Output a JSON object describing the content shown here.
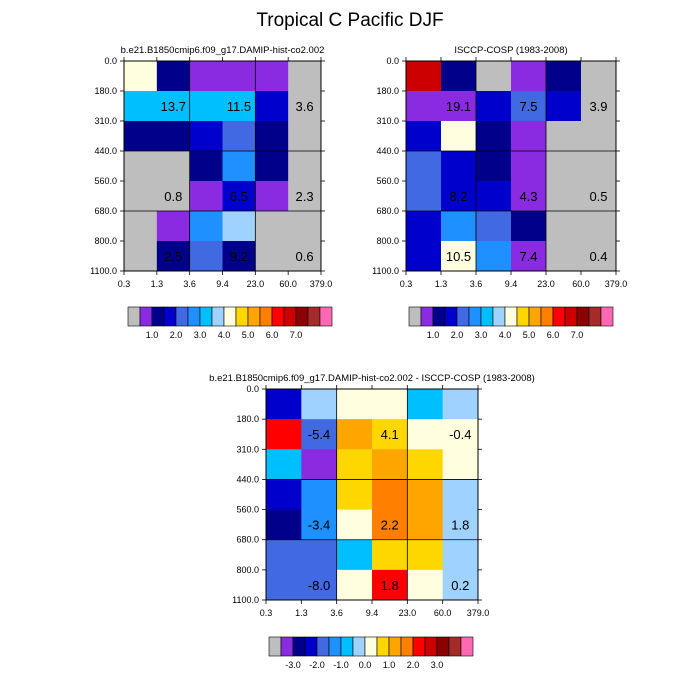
{
  "title": "Tropical C Pacific DJF",
  "palettes": {
    "abs": [
      "#bebebe",
      "#8a2be2",
      "#00008b",
      "#0000cd",
      "#4169e1",
      "#1e90ff",
      "#00bfff",
      "#a0d2ff",
      "#ffffe0",
      "#ffd700",
      "#ffa500",
      "#ff7f00",
      "#ff0000",
      "#cd0000",
      "#8b0000",
      "#a52a2a",
      "#ff69b4"
    ],
    "diff": [
      "#bebebe",
      "#8a2be2",
      "#00008b",
      "#0000cd",
      "#4169e1",
      "#1e90ff",
      "#00bfff",
      "#a0d2ff",
      "#ffffe0",
      "#ffd700",
      "#ffa500",
      "#ff7f00",
      "#ff0000",
      "#cd0000",
      "#8b0000",
      "#a52a2a",
      "#ff69b4"
    ]
  },
  "chart_data": [
    {
      "type": "heatmap",
      "title": "b.e21.B1850cmip6.f09_g17.DAMIP-hist-co2.002",
      "x_tick_labels": [
        "0.3",
        "1.3",
        "3.6",
        "9.4",
        "23.0",
        "60.0",
        "379.0"
      ],
      "y_tick_labels": [
        "0.0",
        "180.0",
        "310.0",
        "440.0",
        "560.0",
        "680.0",
        "800.0",
        "1100.0"
      ],
      "cells": [
        [
          8,
          2,
          1,
          1,
          1,
          0
        ],
        [
          6,
          6,
          6,
          6,
          3,
          0
        ],
        [
          2,
          2,
          3,
          4,
          2,
          0
        ],
        [
          0,
          0,
          2,
          5,
          2,
          0
        ],
        [
          0,
          0,
          1,
          3,
          1,
          0
        ],
        [
          0,
          1,
          5,
          7,
          0,
          0
        ],
        [
          0,
          2,
          4,
          2,
          0,
          0
        ]
      ],
      "group_labels": [
        {
          "text": "13.7",
          "col": 1,
          "row": 1
        },
        {
          "text": "11.5",
          "col": 3,
          "row": 1
        },
        {
          "text": "3.6",
          "col": 5,
          "row": 1
        },
        {
          "text": "0.8",
          "col": 1,
          "row": 4
        },
        {
          "text": "6.5",
          "col": 3,
          "row": 4
        },
        {
          "text": "2.3",
          "col": 5,
          "row": 4
        },
        {
          "text": "2.5",
          "col": 1,
          "row": 6
        },
        {
          "text": "9.2",
          "col": 3,
          "row": 6
        },
        {
          "text": "0.6",
          "col": 5,
          "row": 6
        }
      ],
      "colorbar_labels": [
        {
          "text": "1.0",
          "after": 1
        },
        {
          "text": "2.0",
          "after": 3
        },
        {
          "text": "3.0",
          "after": 5
        },
        {
          "text": "4.0",
          "after": 7
        },
        {
          "text": "5.0",
          "after": 9
        },
        {
          "text": "6.0",
          "after": 11
        },
        {
          "text": "7.0",
          "after": 13
        }
      ]
    },
    {
      "type": "heatmap",
      "title": "ISCCP-COSP (1983-2008)",
      "x_tick_labels": [
        "0.3",
        "1.3",
        "3.6",
        "9.4",
        "23.0",
        "60.0",
        "379.0"
      ],
      "y_tick_labels": [
        "0.0",
        "180.0",
        "310.0",
        "440.0",
        "560.0",
        "680.0",
        "800.0",
        "1100.0"
      ],
      "cells": [
        [
          13,
          2,
          0,
          1,
          2,
          0
        ],
        [
          1,
          1,
          3,
          4,
          3,
          0
        ],
        [
          3,
          8,
          2,
          1,
          0,
          0
        ],
        [
          4,
          3,
          2,
          1,
          0,
          0
        ],
        [
          4,
          3,
          3,
          1,
          0,
          0
        ],
        [
          3,
          5,
          4,
          2,
          0,
          0
        ],
        [
          3,
          8,
          5,
          1,
          0,
          0
        ]
      ],
      "group_labels": [
        {
          "text": "19.1",
          "col": 1,
          "row": 1
        },
        {
          "text": "7.5",
          "col": 3,
          "row": 1
        },
        {
          "text": "3.9",
          "col": 5,
          "row": 1
        },
        {
          "text": "8.2",
          "col": 1,
          "row": 4
        },
        {
          "text": "4.3",
          "col": 3,
          "row": 4
        },
        {
          "text": "0.5",
          "col": 5,
          "row": 4
        },
        {
          "text": "10.5",
          "col": 1,
          "row": 6
        },
        {
          "text": "7.4",
          "col": 3,
          "row": 6
        },
        {
          "text": "0.4",
          "col": 5,
          "row": 6
        }
      ],
      "colorbar_labels": [
        {
          "text": "1.0",
          "after": 1
        },
        {
          "text": "2.0",
          "after": 3
        },
        {
          "text": "3.0",
          "after": 5
        },
        {
          "text": "4.0",
          "after": 7
        },
        {
          "text": "5.0",
          "after": 9
        },
        {
          "text": "6.0",
          "after": 11
        },
        {
          "text": "7.0",
          "after": 13
        }
      ]
    },
    {
      "type": "heatmap",
      "title": "b.e21.B1850cmip6.f09_g17.DAMIP-hist-co2.002 - ISCCP-COSP (1983-2008)",
      "x_tick_labels": [
        "0.3",
        "1.3",
        "3.6",
        "9.4",
        "23.0",
        "60.0",
        "379.0"
      ],
      "y_tick_labels": [
        "0.0",
        "180.0",
        "310.0",
        "440.0",
        "560.0",
        "680.0",
        "800.0",
        "1100.0"
      ],
      "cells": [
        [
          3,
          7,
          8,
          8,
          6,
          7
        ],
        [
          12,
          4,
          10,
          9,
          8,
          8
        ],
        [
          6,
          1,
          9,
          10,
          9,
          8
        ],
        [
          3,
          5,
          9,
          11,
          10,
          7
        ],
        [
          2,
          5,
          8,
          11,
          10,
          7
        ],
        [
          4,
          4,
          6,
          9,
          9,
          7
        ],
        [
          4,
          4,
          8,
          12,
          8,
          7
        ]
      ],
      "group_labels": [
        {
          "text": "-5.4",
          "col": 1,
          "row": 1
        },
        {
          "text": "4.1",
          "col": 3,
          "row": 1
        },
        {
          "text": "-0.4",
          "col": 5,
          "row": 1
        },
        {
          "text": "-3.4",
          "col": 1,
          "row": 4
        },
        {
          "text": "2.2",
          "col": 3,
          "row": 4
        },
        {
          "text": "1.8",
          "col": 5,
          "row": 4
        },
        {
          "text": "-8.0",
          "col": 1,
          "row": 6
        },
        {
          "text": "1.8",
          "col": 3,
          "row": 6
        },
        {
          "text": "0.2",
          "col": 5,
          "row": 6
        }
      ],
      "colorbar_labels": [
        {
          "text": "-3.0",
          "after": 1
        },
        {
          "text": "-2.0",
          "after": 3
        },
        {
          "text": "-1.0",
          "after": 5
        },
        {
          "text": "0.0",
          "after": 7
        },
        {
          "text": "1.0",
          "after": 9
        },
        {
          "text": "2.0",
          "after": 11
        },
        {
          "text": "3.0",
          "after": 13
        }
      ]
    }
  ]
}
